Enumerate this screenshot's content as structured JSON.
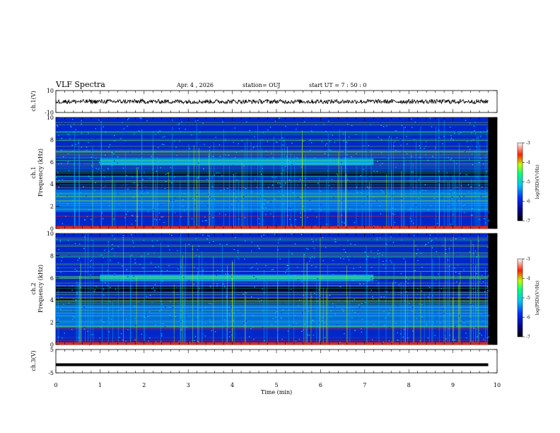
{
  "header": {
    "title": "VLF Spectra",
    "date": "Apr. 4 , 2026",
    "station": "station= OUJ",
    "start_ut": "start UT = 7 : 50 : 0"
  },
  "chart_data": [
    {
      "type": "line",
      "panel": "ch1-waveform",
      "ylabel": "ch.1(V)",
      "ylim": [
        -10,
        10
      ],
      "yticks": [
        -10,
        10
      ],
      "x_range": [
        0,
        9.8
      ],
      "mean_value": 0,
      "amplitude_range": [
        -2,
        2
      ],
      "color": "#000000"
    },
    {
      "type": "heatmap",
      "panel": "ch1-spectrogram",
      "ylabel": "ch.1\nFrequency (kHz)",
      "ylim": [
        0,
        10
      ],
      "yticks": [
        0,
        2,
        4,
        6,
        8,
        10
      ],
      "x_range": [
        0,
        9.8
      ],
      "colorbar": {
        "label": "log(PSD)(V²/Hz)",
        "range": [
          -7,
          -3
        ],
        "ticks": [
          -3,
          -4,
          -5,
          -6,
          -7
        ]
      },
      "features": [
        {
          "name": "6 kHz band",
          "freq_khz": 6.0,
          "x_start": 1.0,
          "x_end": 7.2
        },
        {
          "name": "low-frequency hiss",
          "freq_khz_range": [
            1.5,
            3.5
          ],
          "x_start": 0,
          "x_end": 9.8
        }
      ],
      "colormap": [
        "#000000",
        "#000080",
        "#0030ff",
        "#00c0ff",
        "#00ff80",
        "#c0ff00",
        "#ff2000",
        "#ffffff"
      ]
    },
    {
      "type": "heatmap",
      "panel": "ch2-spectrogram",
      "ylabel": "ch.2\nFrequency (kHz)",
      "ylim": [
        0,
        10
      ],
      "yticks": [
        0,
        2,
        4,
        6,
        8,
        10
      ],
      "x_range": [
        0,
        9.8
      ],
      "colorbar": {
        "label": "log(PSD)(V²/Hz)",
        "range": [
          -7,
          -3
        ],
        "ticks": [
          -3,
          -4,
          -5,
          -6,
          -7
        ]
      },
      "features": [
        {
          "name": "6 kHz band",
          "freq_khz": 6.0,
          "x_start": 1.0,
          "x_end": 7.2
        },
        {
          "name": "low-frequency hiss",
          "freq_khz_range": [
            1.5,
            3.5
          ],
          "x_start": 0,
          "x_end": 9.8
        }
      ]
    },
    {
      "type": "line",
      "panel": "ch3-waveform",
      "ylabel": "ch.3(V)",
      "ylim": [
        -5,
        5
      ],
      "yticks": [
        -5,
        5
      ],
      "x_range": [
        0,
        9.8
      ],
      "mean_value": -1.5,
      "color": "#000000"
    }
  ],
  "xaxis": {
    "label": "Time (min)",
    "range": [
      0,
      10
    ],
    "ticks": [
      "0",
      "1",
      "2",
      "3",
      "4",
      "5",
      "6",
      "7",
      "8",
      "9",
      "10"
    ]
  }
}
